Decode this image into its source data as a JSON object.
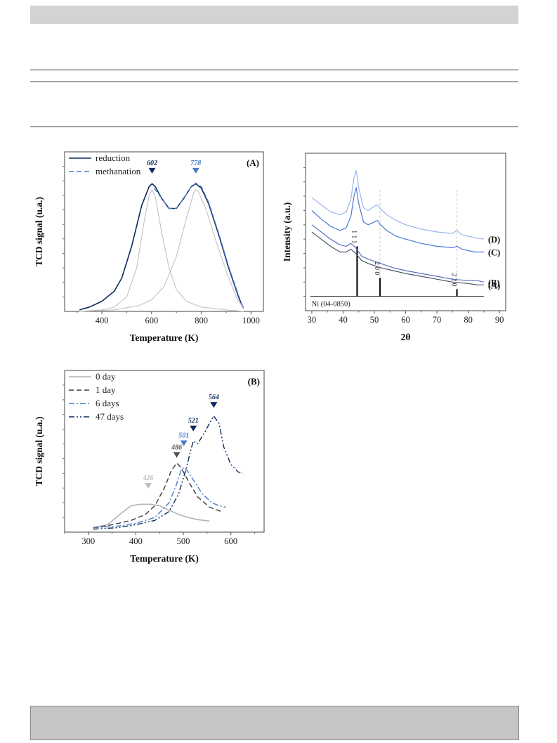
{
  "chart_data": [
    {
      "id": "A",
      "type": "line",
      "panel_label": "(A)",
      "xlabel": "Temperature (K)",
      "ylabel": "TCD signal (u.a.)",
      "xlim": [
        250,
        1050
      ],
      "ylim": [
        0,
        1.1
      ],
      "xticks": [
        400,
        600,
        800,
        1000
      ],
      "xtick_labels": [
        "400",
        "600",
        "800",
        "1000"
      ],
      "legend_position": "top-left",
      "series": [
        {
          "name": "reduction",
          "color": "#0d2a5e",
          "style": "solid",
          "width": 1.6,
          "x": [
            310,
            350,
            400,
            450,
            480,
            520,
            560,
            590,
            602,
            615,
            640,
            670,
            700,
            730,
            760,
            778,
            800,
            830,
            870,
            910,
            950,
            970
          ],
          "y": [
            0.01,
            0.03,
            0.07,
            0.14,
            0.23,
            0.45,
            0.73,
            0.86,
            0.88,
            0.86,
            0.78,
            0.71,
            0.71,
            0.78,
            0.86,
            0.88,
            0.85,
            0.74,
            0.53,
            0.3,
            0.1,
            0.02
          ]
        },
        {
          "name": "methanation",
          "color": "#4a7cc7",
          "style": "dash",
          "width": 1.4,
          "x": [
            610,
            640,
            670,
            700,
            730,
            760,
            778,
            800,
            830,
            870,
            910,
            950,
            970
          ],
          "y": [
            0.85,
            0.78,
            0.71,
            0.71,
            0.78,
            0.86,
            0.885,
            0.86,
            0.75,
            0.54,
            0.31,
            0.11,
            0.02
          ]
        },
        {
          "name": "",
          "color": "#bdbdbd",
          "style": "solid",
          "width": 1.0,
          "x": [
            310,
            400,
            450,
            500,
            540,
            570,
            590,
            602,
            615,
            640,
            670,
            700,
            740,
            800,
            900,
            970
          ],
          "y": [
            0.0,
            0.01,
            0.03,
            0.1,
            0.3,
            0.62,
            0.8,
            0.84,
            0.79,
            0.55,
            0.3,
            0.15,
            0.07,
            0.03,
            0.01,
            0.0
          ]
        },
        {
          "name": "",
          "color": "#bdbdbd",
          "style": "solid",
          "width": 1.0,
          "x": [
            310,
            450,
            550,
            600,
            650,
            700,
            740,
            770,
            778,
            790,
            820,
            860,
            900,
            940,
            970
          ],
          "y": [
            0.0,
            0.01,
            0.04,
            0.08,
            0.17,
            0.38,
            0.64,
            0.82,
            0.84,
            0.82,
            0.7,
            0.48,
            0.28,
            0.1,
            0.02
          ]
        }
      ],
      "markers": [
        {
          "x": 602,
          "y": 0.965,
          "label": "602",
          "color": "#0d2a5e"
        },
        {
          "x": 778,
          "y": 0.965,
          "label": "778",
          "color": "#4a7cc7"
        }
      ]
    },
    {
      "id": "XRD",
      "type": "line",
      "panel_label": "",
      "xlabel": "2θ",
      "ylabel": "Intensity (a.u.)",
      "xlim": [
        28,
        92
      ],
      "ylim": [
        0,
        1.1
      ],
      "xticks": [
        30,
        40,
        50,
        60,
        70,
        80,
        90
      ],
      "xtick_labels": [
        "30",
        "40",
        "50",
        "60",
        "70",
        "80",
        "90"
      ],
      "reference_label": "Ni (04-0850)",
      "reference_peaks": [
        {
          "x": 44.5,
          "height": 0.35,
          "label": "1 1 1"
        },
        {
          "x": 51.8,
          "height": 0.13,
          "label": "2 0 0"
        },
        {
          "x": 76.4,
          "height": 0.05,
          "label": "2 2 0"
        }
      ],
      "guide_lines_x": [
        51.8,
        76.4
      ],
      "series": [
        {
          "name": "(A)",
          "color": "#4a5468",
          "x": [
            30,
            33,
            36,
            39,
            41,
            42.5,
            44,
            46,
            48,
            52,
            56,
            60,
            65,
            70,
            75,
            80,
            83,
            85
          ],
          "y": [
            0.55,
            0.5,
            0.45,
            0.41,
            0.41,
            0.43,
            0.4,
            0.35,
            0.33,
            0.3,
            0.28,
            0.26,
            0.24,
            0.22,
            0.2,
            0.19,
            0.18,
            0.18
          ]
        },
        {
          "name": "(B)",
          "color": "#5a6fc2",
          "x": [
            30,
            33,
            36,
            39,
            41,
            42.5,
            44,
            46,
            48,
            52,
            56,
            60,
            65,
            70,
            75,
            80,
            83,
            85
          ],
          "y": [
            0.6,
            0.55,
            0.5,
            0.46,
            0.45,
            0.47,
            0.44,
            0.38,
            0.36,
            0.33,
            0.3,
            0.28,
            0.26,
            0.24,
            0.22,
            0.21,
            0.21,
            0.2
          ]
        },
        {
          "name": "(C)",
          "color": "#4a78d2",
          "x": [
            30,
            33,
            36,
            39,
            41,
            42.5,
            43.5,
            44.2,
            45,
            46.5,
            48,
            50,
            51,
            52,
            54,
            57,
            60,
            65,
            70,
            75,
            76.4,
            78,
            82,
            85
          ],
          "y": [
            0.7,
            0.64,
            0.59,
            0.56,
            0.58,
            0.66,
            0.8,
            0.86,
            0.75,
            0.62,
            0.6,
            0.62,
            0.63,
            0.6,
            0.56,
            0.52,
            0.5,
            0.47,
            0.45,
            0.44,
            0.45,
            0.43,
            0.41,
            0.41
          ]
        },
        {
          "name": "(D)",
          "color": "#98b6e6",
          "x": [
            30,
            33,
            36,
            39,
            41,
            42.5,
            43.5,
            44.2,
            45,
            46.5,
            48,
            50,
            51,
            52,
            54,
            57,
            60,
            65,
            70,
            75,
            76.4,
            78,
            82,
            85
          ],
          "y": [
            0.79,
            0.74,
            0.69,
            0.67,
            0.69,
            0.78,
            0.93,
            0.98,
            0.86,
            0.72,
            0.7,
            0.73,
            0.74,
            0.71,
            0.67,
            0.63,
            0.6,
            0.57,
            0.55,
            0.54,
            0.56,
            0.53,
            0.51,
            0.5
          ]
        }
      ]
    },
    {
      "id": "B",
      "type": "line",
      "panel_label": "(B)",
      "xlabel": "Temperature (K)",
      "ylabel": "TCD signal (u.a.)",
      "xlim": [
        250,
        670
      ],
      "ylim": [
        0,
        1.1
      ],
      "xticks": [
        300,
        400,
        500,
        600
      ],
      "xtick_labels": [
        "300",
        "400",
        "500",
        "600"
      ],
      "legend_position": "top-left",
      "series": [
        {
          "name": "0 day",
          "color": "#b3b3b3",
          "style": "solid",
          "width": 1.6,
          "x": [
            310,
            340,
            370,
            390,
            410,
            430,
            450,
            470,
            490,
            510,
            530,
            555
          ],
          "y": [
            0.03,
            0.05,
            0.13,
            0.18,
            0.19,
            0.19,
            0.18,
            0.15,
            0.12,
            0.1,
            0.085,
            0.075
          ]
        },
        {
          "name": "1 day",
          "color": "#3a3a3a",
          "style": "dash",
          "width": 1.4,
          "x": [
            310,
            350,
            390,
            420,
            440,
            460,
            475,
            486,
            495,
            510,
            530,
            555,
            580
          ],
          "y": [
            0.03,
            0.05,
            0.08,
            0.12,
            0.18,
            0.3,
            0.42,
            0.47,
            0.44,
            0.35,
            0.24,
            0.17,
            0.14
          ]
        },
        {
          "name": "6 days",
          "color": "#4a7cc7",
          "style": "dashdot",
          "width": 1.4,
          "x": [
            310,
            360,
            400,
            440,
            470,
            485,
            495,
            501,
            508,
            520,
            540,
            560,
            575,
            590
          ],
          "y": [
            0.03,
            0.04,
            0.06,
            0.1,
            0.2,
            0.32,
            0.42,
            0.44,
            0.42,
            0.36,
            0.26,
            0.2,
            0.18,
            0.17
          ]
        },
        {
          "name": "47 days",
          "color": "#0d2a5e",
          "style": "dashdotdot",
          "width": 1.4,
          "x": [
            310,
            360,
            400,
            440,
            470,
            490,
            505,
            515,
            521,
            530,
            545,
            555,
            564,
            575,
            585,
            600,
            615,
            625
          ],
          "y": [
            0.02,
            0.03,
            0.05,
            0.08,
            0.14,
            0.26,
            0.42,
            0.55,
            0.62,
            0.6,
            0.68,
            0.74,
            0.79,
            0.74,
            0.58,
            0.46,
            0.41,
            0.4
          ]
        }
      ],
      "markers": [
        {
          "x": 426,
          "y": 0.31,
          "label": "426",
          "color": "#bdbdbd"
        },
        {
          "x": 486,
          "y": 0.52,
          "label": "486",
          "color": "#555555"
        },
        {
          "x": 501,
          "y": 0.6,
          "label": "501",
          "color": "#4a7cc7"
        },
        {
          "x": 521,
          "y": 0.7,
          "label": "521",
          "color": "#0d2a5e"
        },
        {
          "x": 564,
          "y": 0.86,
          "label": "564",
          "color": "#0d2a5e"
        }
      ]
    }
  ]
}
